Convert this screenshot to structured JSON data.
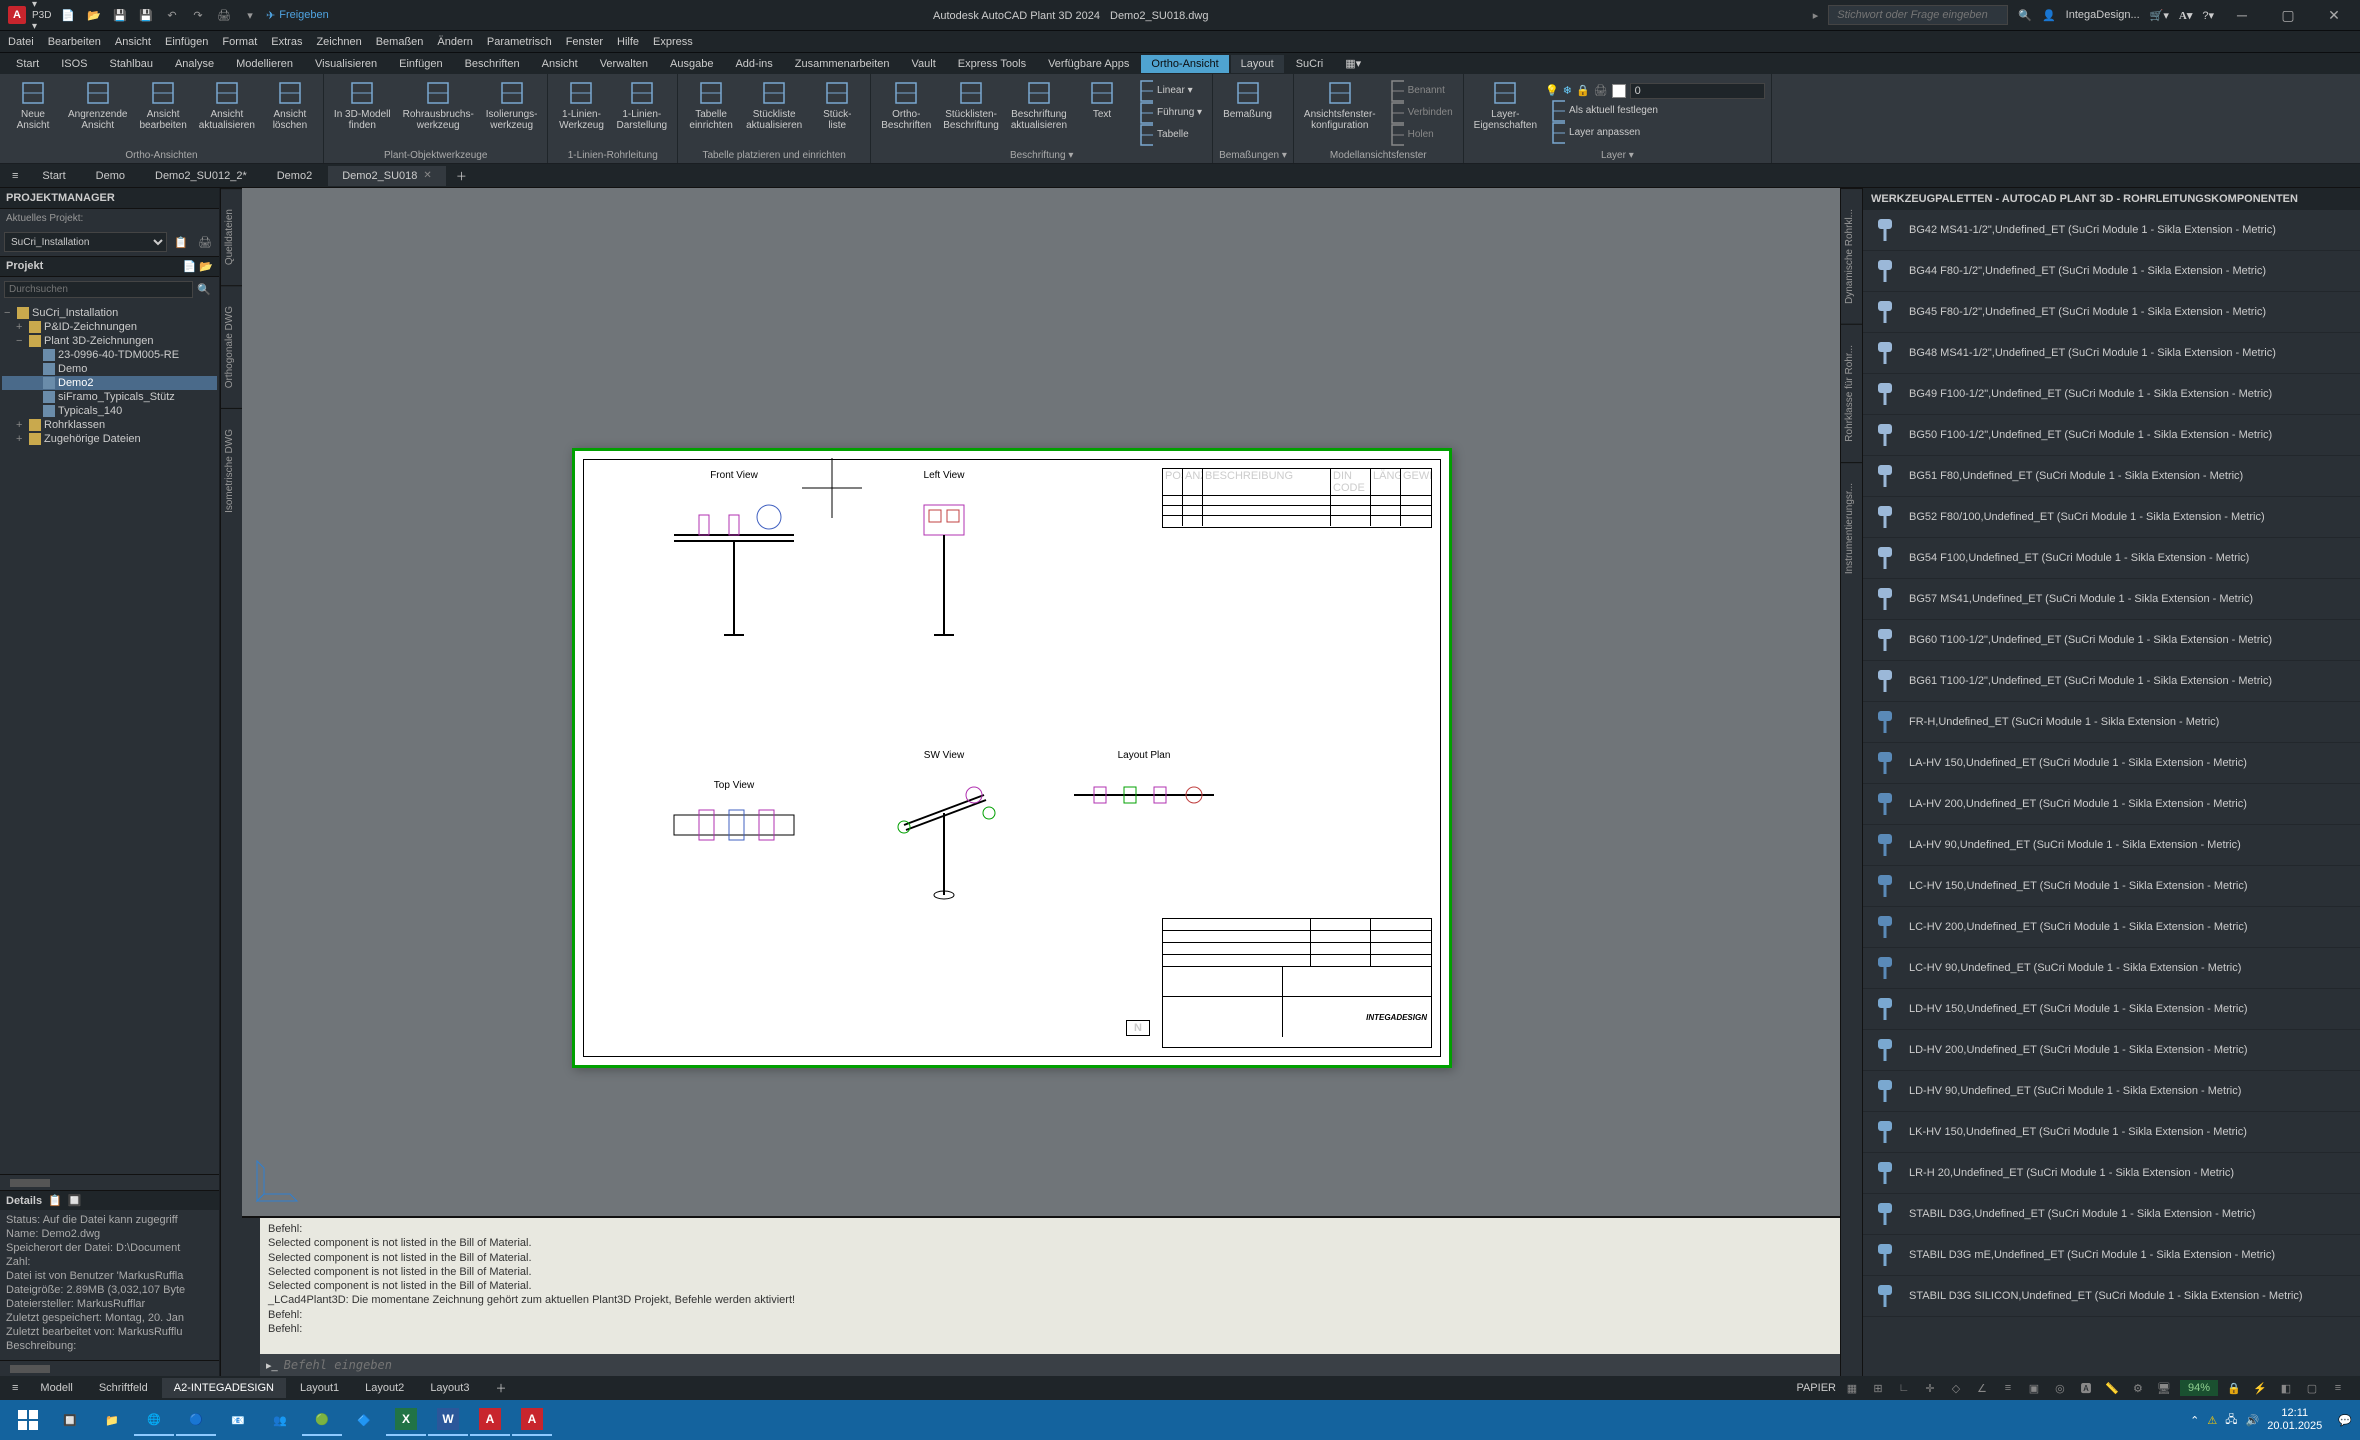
{
  "app": {
    "title_prefix": "Autodesk AutoCAD Plant 3D 2024",
    "title_doc": "Demo2_SU018.dwg",
    "logo": "A",
    "p3d_tag": "▾ P3D ▾",
    "share": "Freigeben",
    "search_placeholder": "Stichwort oder Frage eingeben",
    "user": "IntegaDesign..."
  },
  "menubar": [
    "Datei",
    "Bearbeiten",
    "Ansicht",
    "Einfügen",
    "Format",
    "Extras",
    "Zeichnen",
    "Bemaßen",
    "Ändern",
    "Parametrisch",
    "Fenster",
    "Hilfe",
    "Express"
  ],
  "ribbon_tabs": [
    "Start",
    "ISOS",
    "Stahlbau",
    "Analyse",
    "Modellieren",
    "Visualisieren",
    "Einfügen",
    "Beschriften",
    "Ansicht",
    "Verwalten",
    "Ausgabe",
    "Add-ins",
    "Zusammenarbeiten",
    "Vault",
    "Express Tools",
    "Verfügbare Apps",
    "Ortho-Ansicht",
    "Layout",
    "SuCri"
  ],
  "active_ribbon_tab": "Ortho-Ansicht",
  "ribbon_panels": {
    "p1": {
      "title": "Ortho-Ansichten",
      "btns": [
        {
          "l1": "Neue",
          "l2": "Ansicht"
        },
        {
          "l1": "Angrenzende",
          "l2": "Ansicht"
        },
        {
          "l1": "Ansicht",
          "l2": "bearbeiten"
        },
        {
          "l1": "Ansicht",
          "l2": "aktualisieren"
        },
        {
          "l1": "Ansicht",
          "l2": "löschen"
        }
      ]
    },
    "p2": {
      "title": "Plant-Objektwerkzeuge",
      "btns": [
        {
          "l1": "In 3D-Modell",
          "l2": "finden"
        },
        {
          "l1": "Rohrausbruchs-",
          "l2": "werkzeug"
        },
        {
          "l1": "Isolierungs-",
          "l2": "werkzeug"
        }
      ]
    },
    "p3": {
      "title": "1-Linien-Rohrleitung",
      "btns": [
        {
          "l1": "1-Linien-",
          "l2": "Werkzeug"
        },
        {
          "l1": "1-Linien-",
          "l2": "Darstellung"
        }
      ]
    },
    "p4": {
      "title": "Tabelle platzieren und einrichten",
      "btns": [
        {
          "l1": "Tabelle",
          "l2": "einrichten"
        },
        {
          "l1": "Stückliste",
          "l2": "aktualisieren"
        },
        {
          "l1": "Stück-",
          "l2": "liste"
        }
      ]
    },
    "p5": {
      "title": "Beschriftung ▾",
      "btns": [
        {
          "l1": "Ortho-",
          "l2": "Beschriften"
        },
        {
          "l1": "Stücklisten-",
          "l2": "Beschriftung"
        },
        {
          "l1": "Beschriftung",
          "l2": "aktualisieren"
        },
        {
          "l1": "Text",
          "l2": ""
        }
      ],
      "side": [
        {
          "lbl": "Linear ▾"
        },
        {
          "lbl": "Führung ▾"
        },
        {
          "lbl": "Tabelle"
        }
      ]
    },
    "p6": {
      "title": "Bemaßungen ▾",
      "btns": [
        {
          "l1": "Bemaßung",
          "l2": ""
        }
      ]
    },
    "p7": {
      "title": "Modellansichtsfenster",
      "btns": [
        {
          "l1": "Ansichtsfenster-",
          "l2": "konfiguration"
        }
      ],
      "side": [
        {
          "lbl": "Benannt"
        },
        {
          "lbl": "Verbinden"
        },
        {
          "lbl": "Holen"
        }
      ]
    },
    "p8": {
      "title": "Layer ▾",
      "btns": [
        {
          "l1": "Layer-",
          "l2": "Eigenschaften"
        }
      ],
      "side": [
        {
          "lbl": "Als aktuell festlegen"
        },
        {
          "lbl": "Layer anpassen"
        }
      ],
      "layer": "0"
    }
  },
  "file_tabs": [
    {
      "label": "Start",
      "close": false
    },
    {
      "label": "Demo",
      "close": false
    },
    {
      "label": "Demo2_SU012_2*",
      "close": false
    },
    {
      "label": "Demo2",
      "close": false
    },
    {
      "label": "Demo2_SU018",
      "close": true,
      "active": true
    }
  ],
  "project_panel": {
    "title": "PROJEKTMANAGER",
    "current_label": "Aktuelles Projekt:",
    "current_project": "SuCri_Installation",
    "section": "Projekt",
    "search_ph": "Durchsuchen",
    "tree": [
      {
        "lvl": 0,
        "exp": "−",
        "ico": "folder",
        "label": "SuCri_Installation"
      },
      {
        "lvl": 1,
        "exp": "+",
        "ico": "folder",
        "label": "P&ID-Zeichnungen"
      },
      {
        "lvl": 1,
        "exp": "−",
        "ico": "folder",
        "label": "Plant 3D-Zeichnungen"
      },
      {
        "lvl": 2,
        "exp": "",
        "ico": "dwg",
        "label": "23-0996-40-TDM005-RE"
      },
      {
        "lvl": 2,
        "exp": "",
        "ico": "dwg",
        "label": "Demo"
      },
      {
        "lvl": 2,
        "exp": "",
        "ico": "dwg",
        "label": "Demo2",
        "sel": true
      },
      {
        "lvl": 2,
        "exp": "",
        "ico": "dwg",
        "label": "siFramo_Typicals_Stütz"
      },
      {
        "lvl": 2,
        "exp": "",
        "ico": "dwg",
        "label": "Typicals_140"
      },
      {
        "lvl": 1,
        "exp": "+",
        "ico": "folder",
        "label": "Rohrklassen"
      },
      {
        "lvl": 1,
        "exp": "+",
        "ico": "folder",
        "label": "Zugehörige Dateien"
      }
    ],
    "details_title": "Details",
    "details": [
      "Status: Auf die Datei kann zugegriff",
      "Name: Demo2.dwg",
      "Speicherort der Datei: D:\\Document",
      "Zahl:",
      "Datei ist von Benutzer 'MarkusRuffla",
      "Dateigröße: 2.89MB (3,032,107 Byte",
      "Dateiersteller: MarkusRufflar",
      "Zuletzt gespeichert: Montag, 20. Jan",
      "Zuletzt bearbeitet von: MarkusRufflu",
      "Beschreibung:"
    ]
  },
  "vtabs_left": [
    "Quelldateien",
    "Orthogonale DWG",
    "Isometrische DWG"
  ],
  "vtabs_right": [
    "Dynamische Rohrkl...",
    "Rohrklasse für Rohr...",
    "Instrumentierungsr..."
  ],
  "drawing": {
    "views": [
      "Front View",
      "Left View",
      "Top View",
      "SW View",
      "Layout Plan"
    ],
    "parts_header": [
      "POS",
      "ANZ",
      "BESCHREIBUNG",
      "DIN CODE",
      "LÄNGE",
      "GEWICHT"
    ],
    "north": "N"
  },
  "cmd": {
    "lines": [
      "Befehl:",
      "Selected component is not listed in the Bill of Material.",
      "Selected component is not listed in the Bill of Material.",
      "Selected component is not listed in the Bill of Material.",
      "Selected component is not listed in the Bill of Material.",
      "_LCad4Plant3D: Die momentane Zeichnung gehört zum aktuellen Plant3D Projekt, Befehle werden aktiviert!",
      "Befehl:",
      "Befehl:"
    ],
    "input_ph": "Befehl eingeben"
  },
  "tool_palette": {
    "title": "WERKZEUGPALETTEN - AUTOCAD PLANT 3D - ROHRLEITUNGSKOMPONENTEN",
    "items": [
      "BG42 MS41-1/2\",Undefined_ET (SuCri Module 1 - Sikla Extension - Metric)",
      "BG44 F80-1/2\",Undefined_ET (SuCri Module 1 - Sikla Extension - Metric)",
      "BG45 F80-1/2\",Undefined_ET (SuCri Module 1 - Sikla Extension - Metric)",
      "BG48 MS41-1/2\",Undefined_ET (SuCri Module 1 - Sikla Extension - Metric)",
      "BG49 F100-1/2\",Undefined_ET (SuCri Module 1 - Sikla Extension - Metric)",
      "BG50 F100-1/2\",Undefined_ET (SuCri Module 1 - Sikla Extension - Metric)",
      "BG51 F80,Undefined_ET (SuCri Module 1 - Sikla Extension - Metric)",
      "BG52 F80/100,Undefined_ET (SuCri Module 1 - Sikla Extension - Metric)",
      "BG54 F100,Undefined_ET (SuCri Module 1 - Sikla Extension - Metric)",
      "BG57 MS41,Undefined_ET (SuCri Module 1 - Sikla Extension - Metric)",
      "BG60 T100-1/2\",Undefined_ET (SuCri Module 1 - Sikla Extension - Metric)",
      "BG61 T100-1/2\",Undefined_ET (SuCri Module 1 - Sikla Extension - Metric)",
      "FR-H,Undefined_ET (SuCri Module 1 - Sikla Extension - Metric)",
      "LA-HV 150,Undefined_ET (SuCri Module 1 - Sikla Extension - Metric)",
      "LA-HV 200,Undefined_ET (SuCri Module 1 - Sikla Extension - Metric)",
      "LA-HV 90,Undefined_ET (SuCri Module 1 - Sikla Extension - Metric)",
      "LC-HV 150,Undefined_ET (SuCri Module 1 - Sikla Extension - Metric)",
      "LC-HV 200,Undefined_ET (SuCri Module 1 - Sikla Extension - Metric)",
      "LC-HV 90,Undefined_ET (SuCri Module 1 - Sikla Extension - Metric)",
      "LD-HV 150,Undefined_ET (SuCri Module 1 - Sikla Extension - Metric)",
      "LD-HV 200,Undefined_ET (SuCri Module 1 - Sikla Extension - Metric)",
      "LD-HV 90,Undefined_ET (SuCri Module 1 - Sikla Extension - Metric)",
      "LK-HV 150,Undefined_ET (SuCri Module 1 - Sikla Extension - Metric)",
      "LR-H 20,Undefined_ET (SuCri Module 1 - Sikla Extension - Metric)",
      "STABIL D3G,Undefined_ET (SuCri Module 1 - Sikla Extension - Metric)",
      "STABIL D3G mE,Undefined_ET (SuCri Module 1 - Sikla Extension - Metric)",
      "STABIL D3G SILICON,Undefined_ET (SuCri Module 1 - Sikla Extension - Metric)"
    ]
  },
  "layout_tabs": [
    "Modell",
    "Schriftfeld",
    "A2-INTEGADESIGN",
    "Layout1",
    "Layout2",
    "Layout3"
  ],
  "layout_active": "A2-INTEGADESIGN",
  "status": {
    "paper": "PAPIER",
    "zoom": "94%"
  },
  "taskbar": {
    "time": "12:11",
    "date": "20.01.2025"
  }
}
